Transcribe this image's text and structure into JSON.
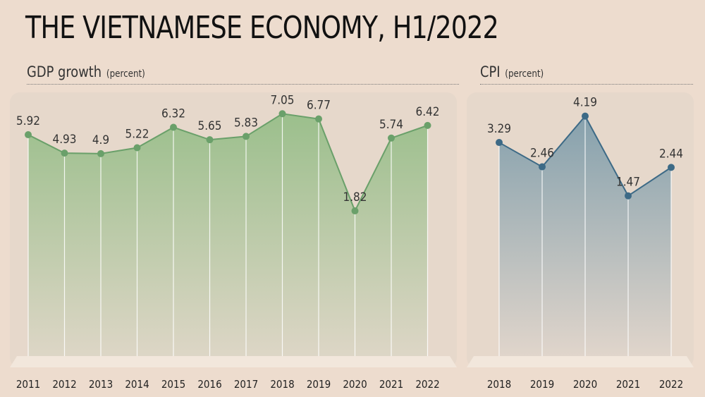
{
  "title": "THE VIETNAMESE ECONOMY, H1/2022",
  "colors": {
    "gdp_line": "#6aa06a",
    "gdp_fill_top": "#9bbf8c",
    "gdp_fill_bottom": "#ddd6c6",
    "cpi_line": "#3d6a86",
    "cpi_fill_top": "#86a1ad",
    "cpi_fill_bottom": "#e0d5cb"
  },
  "chart_data": [
    {
      "type": "area",
      "title": "GDP growth",
      "unit": "(percent)",
      "categories": [
        "2011",
        "2012",
        "2013",
        "2014",
        "2015",
        "2016",
        "2017",
        "2018",
        "2019",
        "2020",
        "2021",
        "2022"
      ],
      "values": [
        5.92,
        4.93,
        4.9,
        5.22,
        6.32,
        5.65,
        5.83,
        7.05,
        6.77,
        1.82,
        5.74,
        6.42
      ],
      "labels": [
        "5.92",
        "4.93",
        "4.9",
        "5.22",
        "6.32",
        "5.65",
        "5.83",
        "7.05",
        "6.77",
        "1.82",
        "5.74",
        "6.42"
      ],
      "ylim": [
        -6,
        8.2
      ],
      "grid": false
    },
    {
      "type": "area",
      "title": "CPI",
      "unit": "(percent)",
      "categories": [
        "2018",
        "2019",
        "2020",
        "2021",
        "2022"
      ],
      "values": [
        3.29,
        2.46,
        4.19,
        1.47,
        2.44
      ],
      "labels": [
        "3.29",
        "2.46",
        "4.19",
        "1.47",
        "2.44"
      ],
      "ylim": [
        -4,
        5
      ],
      "grid": false
    }
  ]
}
